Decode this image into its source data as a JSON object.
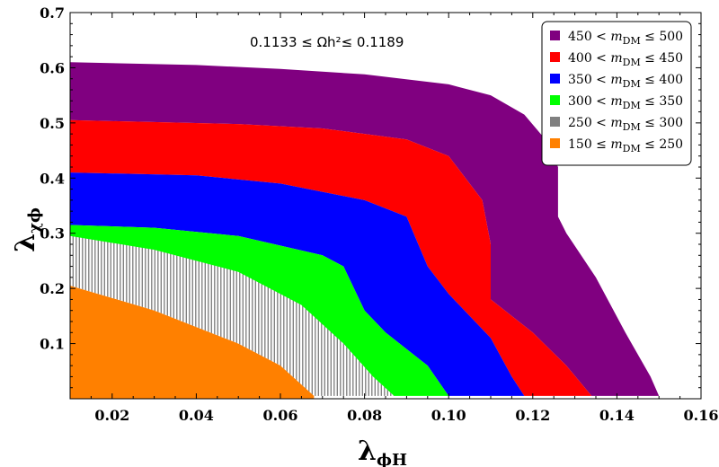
{
  "chart_data": {
    "type": "area",
    "annotation": "0.1133 ≤ Ωh²≤ 0.1189",
    "xlabel": "λϕH",
    "ylabel": "λχϕ",
    "xlim": [
      0.01,
      0.16
    ],
    "ylim": [
      0.0,
      0.7
    ],
    "xticks": [
      "0.02",
      "0.04",
      "0.06",
      "0.08",
      "0.10",
      "0.12",
      "0.14",
      "0.16"
    ],
    "yticks": [
      "0.1",
      "0.2",
      "0.3",
      "0.4",
      "0.5",
      "0.6",
      "0.7"
    ],
    "legend_position": "top-right",
    "series": [
      {
        "name": "450 < mDM ≤ 500",
        "color": "#800080",
        "upper": [
          [
            0.01,
            0.61
          ],
          [
            0.04,
            0.605
          ],
          [
            0.06,
            0.598
          ],
          [
            0.08,
            0.588
          ],
          [
            0.1,
            0.57
          ],
          [
            0.11,
            0.55
          ],
          [
            0.118,
            0.515
          ],
          [
            0.123,
            0.47
          ],
          [
            0.126,
            0.42
          ],
          [
            0.126,
            0.33
          ],
          [
            0.128,
            0.3
          ],
          [
            0.135,
            0.22
          ],
          [
            0.142,
            0.12
          ],
          [
            0.148,
            0.04
          ],
          [
            0.15,
            0.005
          ]
        ],
        "lower": [
          [
            0.01,
            0.505
          ],
          [
            0.05,
            0.498
          ],
          [
            0.07,
            0.49
          ],
          [
            0.09,
            0.47
          ],
          [
            0.1,
            0.44
          ],
          [
            0.108,
            0.36
          ],
          [
            0.11,
            0.28
          ],
          [
            0.11,
            0.18
          ],
          [
            0.12,
            0.12
          ],
          [
            0.128,
            0.06
          ],
          [
            0.134,
            0.005
          ]
        ]
      },
      {
        "name": "400 < mDM ≤ 450",
        "color": "#ff0000",
        "upper": [
          [
            0.01,
            0.505
          ],
          [
            0.05,
            0.498
          ],
          [
            0.07,
            0.49
          ],
          [
            0.09,
            0.47
          ],
          [
            0.1,
            0.44
          ],
          [
            0.108,
            0.36
          ],
          [
            0.11,
            0.28
          ],
          [
            0.11,
            0.18
          ],
          [
            0.12,
            0.12
          ],
          [
            0.128,
            0.06
          ],
          [
            0.134,
            0.005
          ]
        ],
        "lower": [
          [
            0.01,
            0.41
          ],
          [
            0.04,
            0.405
          ],
          [
            0.06,
            0.39
          ],
          [
            0.08,
            0.36
          ],
          [
            0.09,
            0.33
          ],
          [
            0.095,
            0.24
          ],
          [
            0.1,
            0.19
          ],
          [
            0.11,
            0.11
          ],
          [
            0.115,
            0.04
          ],
          [
            0.118,
            0.005
          ]
        ]
      },
      {
        "name": "350 < mDM ≤ 400",
        "color": "#0000ff",
        "upper": [
          [
            0.01,
            0.41
          ],
          [
            0.04,
            0.405
          ],
          [
            0.06,
            0.39
          ],
          [
            0.08,
            0.36
          ],
          [
            0.09,
            0.33
          ],
          [
            0.095,
            0.24
          ],
          [
            0.1,
            0.19
          ],
          [
            0.11,
            0.11
          ],
          [
            0.115,
            0.04
          ],
          [
            0.118,
            0.005
          ]
        ],
        "lower": [
          [
            0.01,
            0.315
          ],
          [
            0.03,
            0.31
          ],
          [
            0.05,
            0.295
          ],
          [
            0.07,
            0.26
          ],
          [
            0.075,
            0.24
          ],
          [
            0.08,
            0.16
          ],
          [
            0.085,
            0.12
          ],
          [
            0.095,
            0.06
          ],
          [
            0.1,
            0.005
          ]
        ]
      },
      {
        "name": "300 < mDM ≤ 350",
        "color": "#00ff00",
        "upper": [
          [
            0.01,
            0.315
          ],
          [
            0.03,
            0.31
          ],
          [
            0.05,
            0.295
          ],
          [
            0.07,
            0.26
          ],
          [
            0.075,
            0.24
          ],
          [
            0.08,
            0.16
          ],
          [
            0.085,
            0.12
          ],
          [
            0.095,
            0.06
          ],
          [
            0.1,
            0.005
          ]
        ],
        "lower": [
          [
            0.01,
            0.28
          ],
          [
            0.03,
            0.26
          ],
          [
            0.05,
            0.22
          ],
          [
            0.065,
            0.16
          ],
          [
            0.075,
            0.1
          ],
          [
            0.082,
            0.04
          ],
          [
            0.087,
            0.005
          ]
        ]
      },
      {
        "name": "250 < mDM ≤ 300",
        "color": "#808080",
        "hatched": true,
        "upper": [
          [
            0.01,
            0.295
          ],
          [
            0.03,
            0.27
          ],
          [
            0.05,
            0.23
          ],
          [
            0.065,
            0.17
          ],
          [
            0.075,
            0.1
          ],
          [
            0.082,
            0.04
          ],
          [
            0.087,
            0.005
          ]
        ],
        "lower": [
          [
            0.01,
            0.205
          ],
          [
            0.03,
            0.16
          ],
          [
            0.05,
            0.1
          ],
          [
            0.06,
            0.06
          ],
          [
            0.068,
            0.005
          ]
        ]
      },
      {
        "name": "150 ≤ mDM ≤ 250",
        "color": "#ff8000",
        "upper": [
          [
            0.01,
            0.205
          ],
          [
            0.03,
            0.16
          ],
          [
            0.05,
            0.1
          ],
          [
            0.06,
            0.06
          ],
          [
            0.068,
            0.005
          ]
        ],
        "lower": [
          [
            0.01,
            0.0
          ],
          [
            0.068,
            0.0
          ]
        ]
      }
    ]
  },
  "legend": [
    {
      "pre": "450 <",
      "label": "m",
      "sub": "DM",
      "post": "≤ 500",
      "color": "#800080"
    },
    {
      "pre": "400 <",
      "label": "m",
      "sub": "DM",
      "post": "≤ 450",
      "color": "#ff0000"
    },
    {
      "pre": "350 <",
      "label": "m",
      "sub": "DM",
      "post": "≤ 400",
      "color": "#0000ff"
    },
    {
      "pre": "300 <",
      "label": "m",
      "sub": "DM",
      "post": "≤ 350",
      "color": "#00ff00"
    },
    {
      "pre": "250 <",
      "label": "m",
      "sub": "DM",
      "post": "≤ 300",
      "color": "#808080"
    },
    {
      "pre": "150 ≤",
      "label": "m",
      "sub": "DM",
      "post": "≤ 250",
      "color": "#ff8000"
    }
  ],
  "axis_labels": {
    "x_main": "λ",
    "x_sub": "ϕH",
    "y_main": "λ",
    "y_sub": "χϕ"
  }
}
